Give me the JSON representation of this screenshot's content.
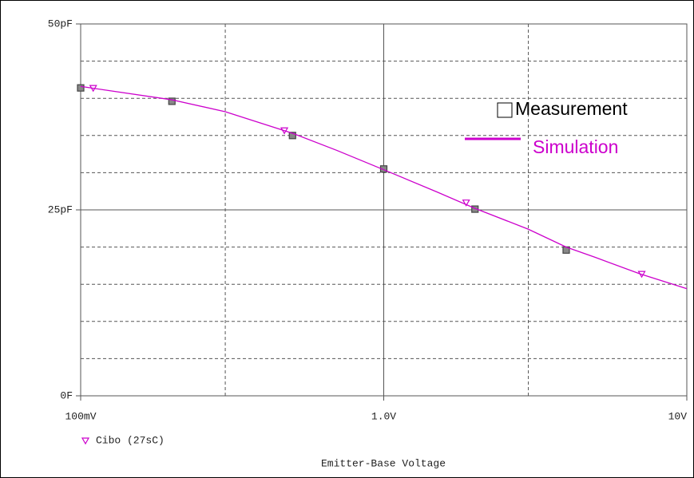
{
  "chart_data": {
    "type": "line",
    "x_label": "Emitter-Base Voltage",
    "xscale": "log",
    "xlim": [
      0.1,
      10
    ],
    "xticks": [
      {
        "value": 0.1,
        "label": "100mV"
      },
      {
        "value": 1,
        "label": "1.0V"
      },
      {
        "value": 10,
        "label": "10V"
      }
    ],
    "x_minor_ticks": [
      0.3,
      3
    ],
    "ylim": [
      0,
      50
    ],
    "yticks": [
      {
        "value": 0,
        "label": "0F"
      },
      {
        "value": 25,
        "label": "25pF"
      },
      {
        "value": 50,
        "label": "50pF"
      }
    ],
    "y_minor_ticks": [
      5,
      10,
      15,
      20,
      30,
      35,
      40,
      45
    ],
    "grid": true,
    "series": [
      {
        "name": "Measurement",
        "color": "#444444",
        "marker": "square",
        "legend": "plot",
        "x": [
          0.1,
          0.2,
          0.5,
          1.0,
          2.0,
          4.0
        ],
        "values": [
          41.4,
          39.6,
          35.0,
          30.5,
          25.1,
          19.6
        ]
      },
      {
        "name": "Simulation",
        "color": "#cc00cc",
        "marker": "none",
        "legend": "plot",
        "x": [
          0.1,
          0.2,
          0.3,
          0.5,
          0.7,
          1.0,
          1.5,
          2,
          3,
          4,
          5,
          7,
          10
        ],
        "values": [
          41.6,
          39.8,
          38.2,
          35.3,
          33.0,
          30.4,
          27.4,
          25.2,
          22.4,
          20.0,
          18.6,
          16.4,
          14.4
        ]
      },
      {
        "name": "Cibo (27sC)",
        "color": "#cc00cc",
        "marker": "triangle",
        "legend": "bottom",
        "x": [
          0.11,
          0.47,
          1.87,
          7.1
        ],
        "values": [
          41.4,
          35.7,
          26.0,
          16.4
        ]
      }
    ]
  }
}
